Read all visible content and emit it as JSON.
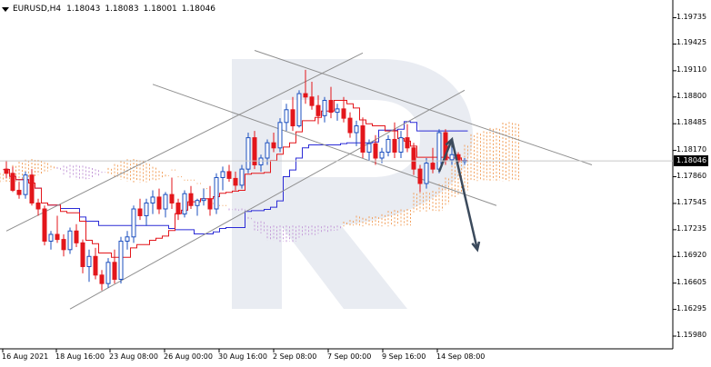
{
  "header": {
    "symbol": "EURUSD,H4",
    "open": "1.18043",
    "high": "1.18083",
    "low": "1.18001",
    "close": "1.18046"
  },
  "current_price": "1.18046",
  "y_axis": {
    "labels": [
      "1.19735",
      "1.19425",
      "1.19110",
      "1.18800",
      "1.18485",
      "1.18170",
      "1.17860",
      "1.17545",
      "1.17235",
      "1.16920",
      "1.16605",
      "1.16295",
      "1.15980"
    ],
    "values": [
      1.19735,
      1.19425,
      1.1911,
      1.188,
      1.18485,
      1.1817,
      1.1786,
      1.17545,
      1.17235,
      1.1692,
      1.16605,
      1.16295,
      1.1598
    ]
  },
  "x_axis": {
    "labels": [
      "16 Aug 2021",
      "18 Aug 16:00",
      "23 Aug 08:00",
      "26 Aug 00:00",
      "30 Aug 16:00",
      "2 Sep 08:00",
      "7 Sep 00:00",
      "9 Sep 16:00",
      "14 Sep 08:00"
    ]
  },
  "colors": {
    "bull": "#1b4fbf",
    "bear": "#e3161b",
    "tenkan": "#e3161b",
    "kijun": "#2b2bd6",
    "cloud_orange": "#f2a15e",
    "cloud_purple": "#c49ad8",
    "channel": "#8f8f8f",
    "arrow": "#3b4a5c",
    "watermark": "#e9ecf2"
  },
  "chart_data": {
    "type": "candlestick",
    "symbol": "EURUSD",
    "timeframe": "H4",
    "ylim": [
      1.1583,
      1.1988
    ],
    "ohlc": [
      [
        1.1795,
        1.1805,
        1.1784,
        1.179
      ],
      [
        1.179,
        1.1798,
        1.1768,
        1.177
      ],
      [
        1.177,
        1.178,
        1.176,
        1.1765
      ],
      [
        1.1765,
        1.1792,
        1.176,
        1.1788
      ],
      [
        1.1788,
        1.1795,
        1.1752,
        1.1755
      ],
      [
        1.1755,
        1.176,
        1.174,
        1.1748
      ],
      [
        1.1748,
        1.1752,
        1.1705,
        1.171
      ],
      [
        1.171,
        1.1722,
        1.17,
        1.1718
      ],
      [
        1.1718,
        1.174,
        1.1708,
        1.1712
      ],
      [
        1.1712,
        1.1718,
        1.1692,
        1.17
      ],
      [
        1.17,
        1.1726,
        1.1695,
        1.1722
      ],
      [
        1.1722,
        1.173,
        1.1703,
        1.1708
      ],
      [
        1.1708,
        1.1712,
        1.1672,
        1.168
      ],
      [
        1.168,
        1.17,
        1.1662,
        1.1692
      ],
      [
        1.1692,
        1.1702,
        1.1665,
        1.167
      ],
      [
        1.167,
        1.1676,
        1.1652,
        1.166
      ],
      [
        1.166,
        1.169,
        1.1655,
        1.1685
      ],
      [
        1.1685,
        1.17,
        1.166,
        1.1665
      ],
      [
        1.1665,
        1.1715,
        1.166,
        1.171
      ],
      [
        1.171,
        1.1722,
        1.17,
        1.1715
      ],
      [
        1.1715,
        1.1752,
        1.1708,
        1.1748
      ],
      [
        1.1748,
        1.176,
        1.1735,
        1.174
      ],
      [
        1.174,
        1.176,
        1.1728,
        1.1755
      ],
      [
        1.1755,
        1.177,
        1.1742,
        1.1762
      ],
      [
        1.1762,
        1.1772,
        1.1742,
        1.1748
      ],
      [
        1.1748,
        1.1768,
        1.1738,
        1.1765
      ],
      [
        1.1765,
        1.1785,
        1.1748,
        1.1755
      ],
      [
        1.1755,
        1.176,
        1.1735,
        1.1742
      ],
      [
        1.1742,
        1.177,
        1.1738,
        1.1766
      ],
      [
        1.1766,
        1.1775,
        1.1748,
        1.1752
      ],
      [
        1.1752,
        1.176,
        1.174,
        1.1758
      ],
      [
        1.1758,
        1.1772,
        1.1752,
        1.176
      ],
      [
        1.176,
        1.1775,
        1.174,
        1.1748
      ],
      [
        1.1748,
        1.179,
        1.1742,
        1.1785
      ],
      [
        1.1785,
        1.1798,
        1.177,
        1.1792
      ],
      [
        1.1792,
        1.18,
        1.178,
        1.1784
      ],
      [
        1.1784,
        1.1792,
        1.177,
        1.1776
      ],
      [
        1.1776,
        1.18,
        1.1772,
        1.1795
      ],
      [
        1.1795,
        1.1838,
        1.179,
        1.1832
      ],
      [
        1.1832,
        1.184,
        1.1795,
        1.18
      ],
      [
        1.18,
        1.1812,
        1.1792,
        1.1808
      ],
      [
        1.1808,
        1.183,
        1.18,
        1.1826
      ],
      [
        1.1826,
        1.1838,
        1.1815,
        1.182
      ],
      [
        1.182,
        1.1855,
        1.1815,
        1.185
      ],
      [
        1.185,
        1.1872,
        1.184,
        1.1865
      ],
      [
        1.1865,
        1.188,
        1.184,
        1.1846
      ],
      [
        1.1846,
        1.1888,
        1.1844,
        1.1884
      ],
      [
        1.1884,
        1.1912,
        1.1872,
        1.188
      ],
      [
        1.188,
        1.1898,
        1.1865,
        1.187
      ],
      [
        1.187,
        1.1882,
        1.1848,
        1.1858
      ],
      [
        1.1858,
        1.188,
        1.185,
        1.1876
      ],
      [
        1.1876,
        1.1892,
        1.1855,
        1.1862
      ],
      [
        1.1862,
        1.1872,
        1.1852,
        1.1866
      ],
      [
        1.1866,
        1.188,
        1.185,
        1.1855
      ],
      [
        1.1855,
        1.1862,
        1.1832,
        1.1838
      ],
      [
        1.1838,
        1.1852,
        1.1822,
        1.1846
      ],
      [
        1.1846,
        1.1856,
        1.1808,
        1.1815
      ],
      [
        1.1815,
        1.183,
        1.1805,
        1.1825
      ],
      [
        1.1825,
        1.1835,
        1.18,
        1.1808
      ],
      [
        1.1808,
        1.182,
        1.1802,
        1.1815
      ],
      [
        1.1815,
        1.1835,
        1.181,
        1.183
      ],
      [
        1.183,
        1.185,
        1.1808,
        1.1815
      ],
      [
        1.1815,
        1.184,
        1.1808,
        1.1832
      ],
      [
        1.1832,
        1.1848,
        1.1815,
        1.182
      ],
      [
        1.182,
        1.1826,
        1.1788,
        1.1795
      ],
      [
        1.1795,
        1.18,
        1.1768,
        1.1778
      ],
      [
        1.1778,
        1.1808,
        1.1772,
        1.1802
      ],
      [
        1.1802,
        1.182,
        1.179,
        1.1795
      ],
      [
        1.1795,
        1.1842,
        1.179,
        1.1838
      ],
      [
        1.1838,
        1.1842,
        1.18,
        1.1806
      ],
      [
        1.1806,
        1.1822,
        1.18,
        1.1812
      ],
      [
        1.1812,
        1.1815,
        1.18,
        1.1804
      ],
      [
        1.1804,
        1.1808,
        1.18,
        1.1805
      ]
    ],
    "channels": [
      {
        "name": "ascending-channel-upper",
        "points": [
          [
            0,
            1.1722
          ],
          [
            56,
            1.1932
          ]
        ]
      },
      {
        "name": "ascending-channel-lower",
        "points": [
          [
            10,
            1.163
          ],
          [
            72,
            1.1888
          ]
        ]
      },
      {
        "name": "descending-channel-upper",
        "points": [
          [
            39,
            1.1935
          ],
          [
            92,
            1.18
          ]
        ]
      },
      {
        "name": "descending-channel-lower",
        "points": [
          [
            23,
            1.1895
          ],
          [
            77,
            1.1752
          ]
        ]
      }
    ],
    "forecast_arrow": [
      [
        68,
        1.1792
      ],
      [
        70,
        1.183
      ],
      [
        74,
        1.17
      ]
    ],
    "ichimoku": "tenkan, kijun and kumo cloud overlay"
  }
}
